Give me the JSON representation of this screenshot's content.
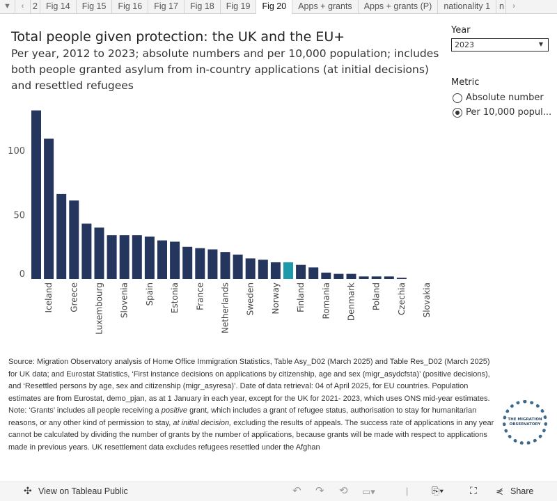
{
  "tabs": {
    "items": [
      "2",
      "Fig 14",
      "Fig 15",
      "Fig 16",
      "Fig 17",
      "Fig 18",
      "Fig 19",
      "Fig 20",
      "Apps + grants",
      "Apps + grants (P)",
      "nationality 1",
      "n"
    ],
    "active": "Fig 20"
  },
  "header": {
    "title": "Total people given protection: the UK and the EU+",
    "subtitle": "Per year, 2012 to 2023; absolute numbers and per 10,000 population; includes both people granted asylum from in-country applications (at initial decisions) and resettled refugees"
  },
  "controls": {
    "year_label": "Year",
    "year_value": "2023",
    "metric_label": "Metric",
    "metric_options": [
      "Absolute number",
      "Per 10,000 popul..."
    ],
    "metric_selected": 1
  },
  "colors": {
    "bar": "#24355e",
    "highlight": "#1d9aa9"
  },
  "chart_data": {
    "type": "bar",
    "categories": [
      "",
      "Iceland",
      "",
      "Greece",
      "",
      "Luxembourg",
      "",
      "Slovenia",
      "",
      "Spain",
      "",
      "Estonia",
      "",
      "France",
      "",
      "Netherlands",
      "",
      "Sweden",
      "",
      "Norway",
      "",
      "Finland",
      "",
      "Romania",
      "",
      "Denmark",
      "",
      "Poland",
      "",
      "Czechia",
      "",
      "Slovakia"
    ],
    "values": [
      131,
      109,
      66,
      61,
      43,
      40,
      34,
      34,
      34,
      33,
      30,
      29,
      25,
      24,
      23,
      21,
      19,
      16,
      15,
      13,
      13,
      11,
      9,
      5,
      4,
      4,
      2,
      2,
      2,
      1,
      0,
      0
    ],
    "highlight_index": 20,
    "yticks": [
      0,
      50,
      100
    ],
    "ylim": [
      0,
      131
    ],
    "title": "",
    "xlabel": "",
    "ylabel": ""
  },
  "source": {
    "text": "Source: Migration Observatory analysis of Home Office Immigration Statistics, Table Asy_D02 (March 2025) and Table Res_D02 (March 2025) for UK data; and Eurostat Statistics,  ‘First instance decisions on applications by citizenship, age and sex (migr_asydcfsta)’ (positive decisions), and ‘Resettled persons by age, sex and citizenship (migr_asyresa)’.  Date of data retrieval: 04 of April 2025, for EU countries. Population estimates are from Eurostat, demo_pjan, as at 1 January in each year, except for the UK for 2021- 2023, which uses ONS mid-year estimates.",
    "note_a": "Note: ‘Grants’ includes all people receiving a ",
    "note_b": "positive",
    "note_c": " grant, which includes a grant of refugee status, authorisation to stay for humanitarian reasons, or any other kind of permission to stay, ",
    "note_d": "at initial decision,",
    "note_e": " excluding the results of appeals. The success rate of applications in any year cannot be calculated by dividing the number of grants by the number of applications, because grants will be made with respect to applications made in previous years.  UK resettlement data excludes refugees resettled under the Afghan",
    "logo": "THE MIGRATION OBSERVATORY"
  },
  "footer": {
    "view_label": "View on Tableau Public",
    "share_label": "Share"
  }
}
